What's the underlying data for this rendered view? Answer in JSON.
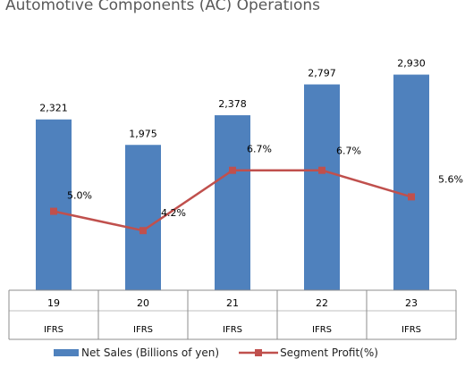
{
  "page_title": "Automotive Components (AC) Operations",
  "chart_data": {
    "type": "bar",
    "categories": [
      "19",
      "20",
      "21",
      "22",
      "23"
    ],
    "sub_labels": [
      "IFRS",
      "IFRS",
      "IFRS",
      "IFRS",
      "IFRS"
    ],
    "series": [
      {
        "name": "Net Sales (Billions of yen)",
        "type": "bar",
        "values": [
          2321,
          1975,
          2378,
          2797,
          2930
        ],
        "labels": [
          "2,321",
          "1,975",
          "2,378",
          "2,797",
          "2,930"
        ]
      },
      {
        "name": "Segment Profit(%)",
        "type": "line",
        "values": [
          5.0,
          4.2,
          6.7,
          6.7,
          5.6
        ],
        "labels": [
          "5.0%",
          "4.2%",
          "6.7%",
          "6.7%",
          "5.6%"
        ]
      }
    ],
    "colors": {
      "bar": "#4f81bd",
      "line": "#c0504d"
    },
    "legend_position": "bottom",
    "grid": false
  }
}
